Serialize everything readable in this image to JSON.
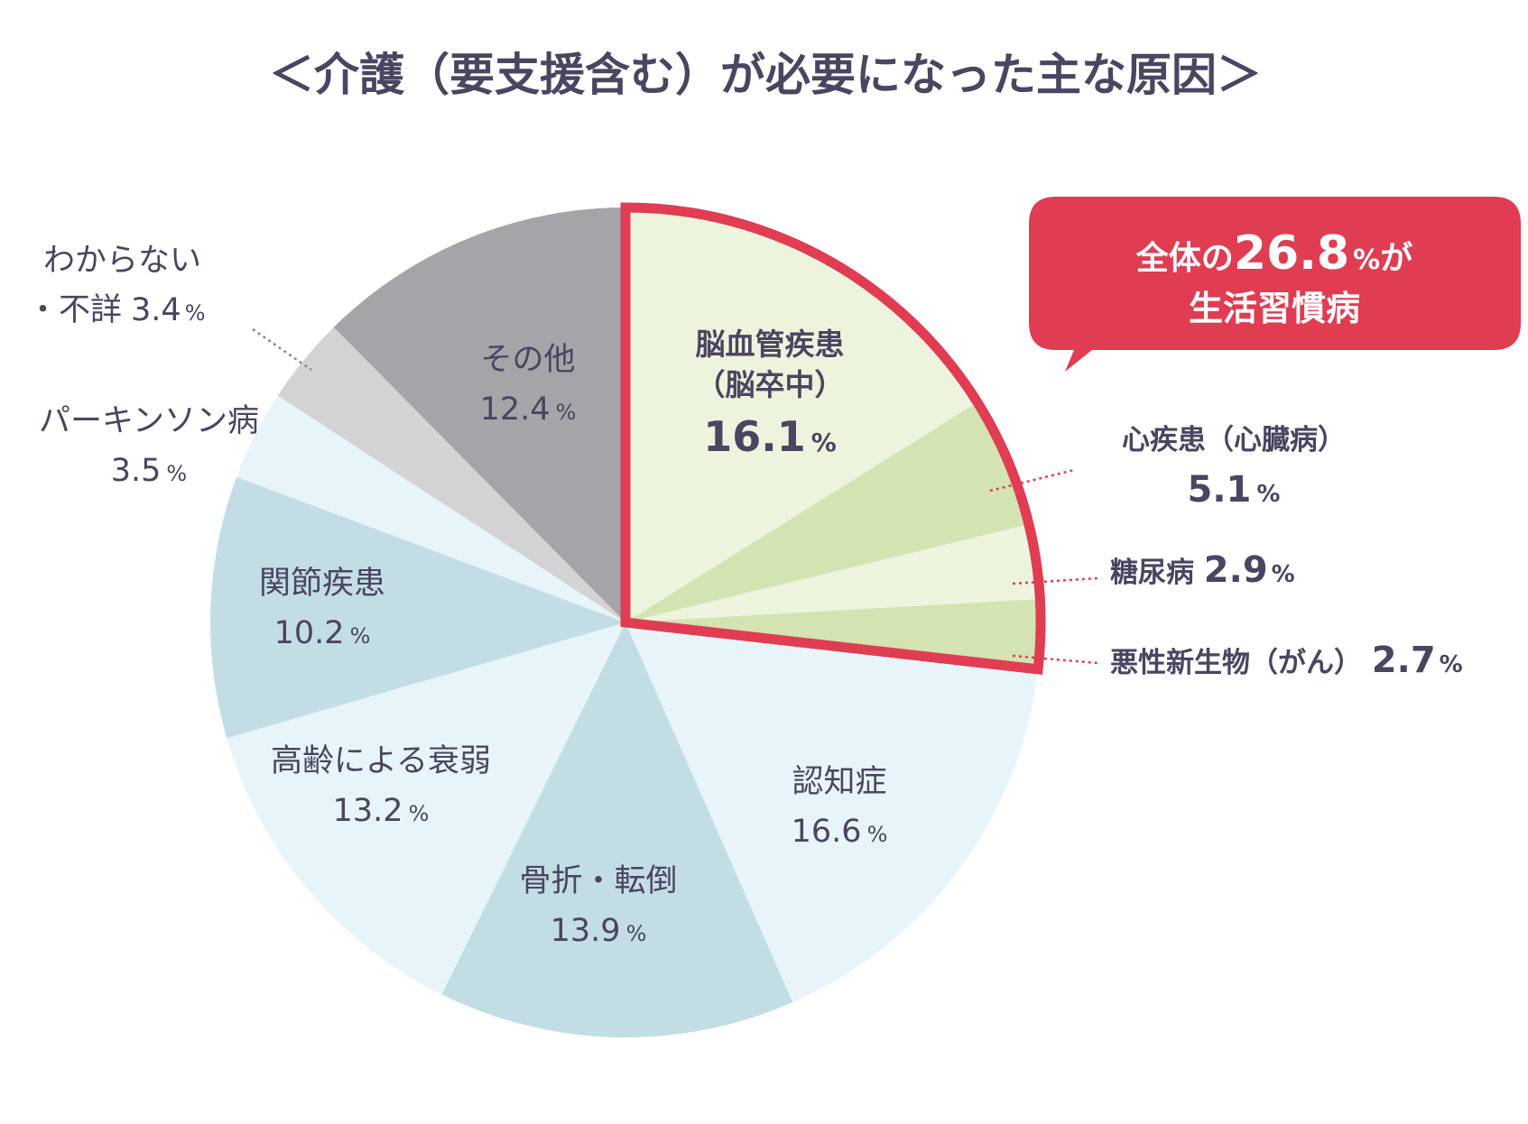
{
  "chart_data": {
    "type": "pie",
    "title": "＜介護（要支援含む）が必要になった主な原因＞",
    "unit": "%",
    "start_angle_deg": 0,
    "direction": "clockwise",
    "slices": [
      {
        "label_lines": [
          "脳血管疾患",
          "（脳卒中）"
        ],
        "value": 16.1,
        "value_text": "16.1",
        "color": "#ecf4de",
        "highlight": true,
        "value_size": "large",
        "label_style": "bold-dark"
      },
      {
        "label_lines": [
          "心疾患（心臓病）"
        ],
        "value": 5.1,
        "value_text": "5.1",
        "color": "#d3e3b2",
        "highlight": true,
        "label_style": "bold-dark",
        "callout": true
      },
      {
        "label_lines": [
          "糖尿病"
        ],
        "value": 2.9,
        "value_text": "2.9",
        "color": "#ecf4de",
        "highlight": true,
        "label_style": "bold-dark",
        "callout": true
      },
      {
        "label_lines": [
          "悪性新生物（がん）"
        ],
        "value": 2.7,
        "value_text": "2.7",
        "color": "#d3e3b2",
        "highlight": true,
        "label_style": "bold-dark",
        "callout": true
      },
      {
        "label_lines": [
          "認知症"
        ],
        "value": 16.6,
        "value_text": "16.6",
        "color": "#e7f5fa",
        "label_style": "normal"
      },
      {
        "label_lines": [
          "骨折・転倒"
        ],
        "value": 13.9,
        "value_text": "13.9",
        "color": "#c3dde5",
        "label_style": "normal"
      },
      {
        "label_lines": [
          "高齢による衰弱"
        ],
        "value": 13.2,
        "value_text": "13.2",
        "color": "#e7f5fa",
        "label_style": "normal"
      },
      {
        "label_lines": [
          "関節疾患"
        ],
        "value": 10.2,
        "value_text": "10.2",
        "color": "#c3dde5",
        "label_style": "normal"
      },
      {
        "label_lines": [
          "パーキンソン病"
        ],
        "value": 3.5,
        "value_text": "3.5",
        "color": "#e7f5fa",
        "label_style": "normal",
        "outside": true
      },
      {
        "label_lines": [
          "わからない",
          "・不詳"
        ],
        "value": 3.4,
        "value_text": "3.4",
        "color": "#d2d3d5",
        "label_style": "normal",
        "outside": true,
        "leader": true
      },
      {
        "label_lines": [
          "その他"
        ],
        "value": 12.4,
        "value_text": "12.4",
        "color": "#a4a5a8",
        "label_style": "normal"
      }
    ],
    "callout": {
      "text_prefix": "全体の",
      "value_text": "26.8",
      "unit": "%",
      "text_suffix": "が",
      "line2": "生活習慣病",
      "value": 26.8,
      "background": "#e03c52",
      "text_color": "#ffffff"
    },
    "highlight_color": "#e03c52",
    "text_color": "#4a4560"
  }
}
